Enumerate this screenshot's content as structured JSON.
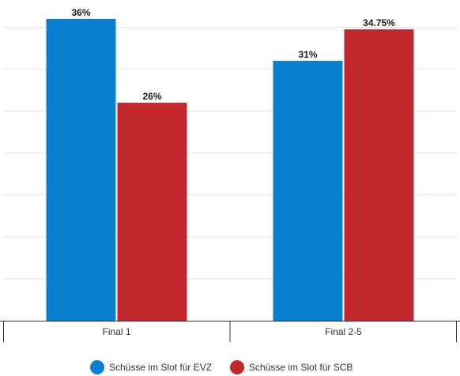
{
  "chart_data": {
    "type": "bar",
    "categories": [
      "Final 1",
      "Final 2-5"
    ],
    "series": [
      {
        "name": "Schüsse im Slot für EVZ",
        "values": [
          36,
          31
        ],
        "labels": [
          "36%",
          "31%"
        ],
        "color": "#0a7ed0"
      },
      {
        "name": "Schüsse im Slot für SCB",
        "values": [
          26,
          34.75
        ],
        "labels": [
          "26%",
          "34.75%"
        ],
        "color": "#c1272d"
      }
    ],
    "ylim": [
      0,
      37.5
    ],
    "grid": true,
    "legend_position": "bottom-center",
    "title": "",
    "xlabel": "",
    "ylabel": ""
  }
}
